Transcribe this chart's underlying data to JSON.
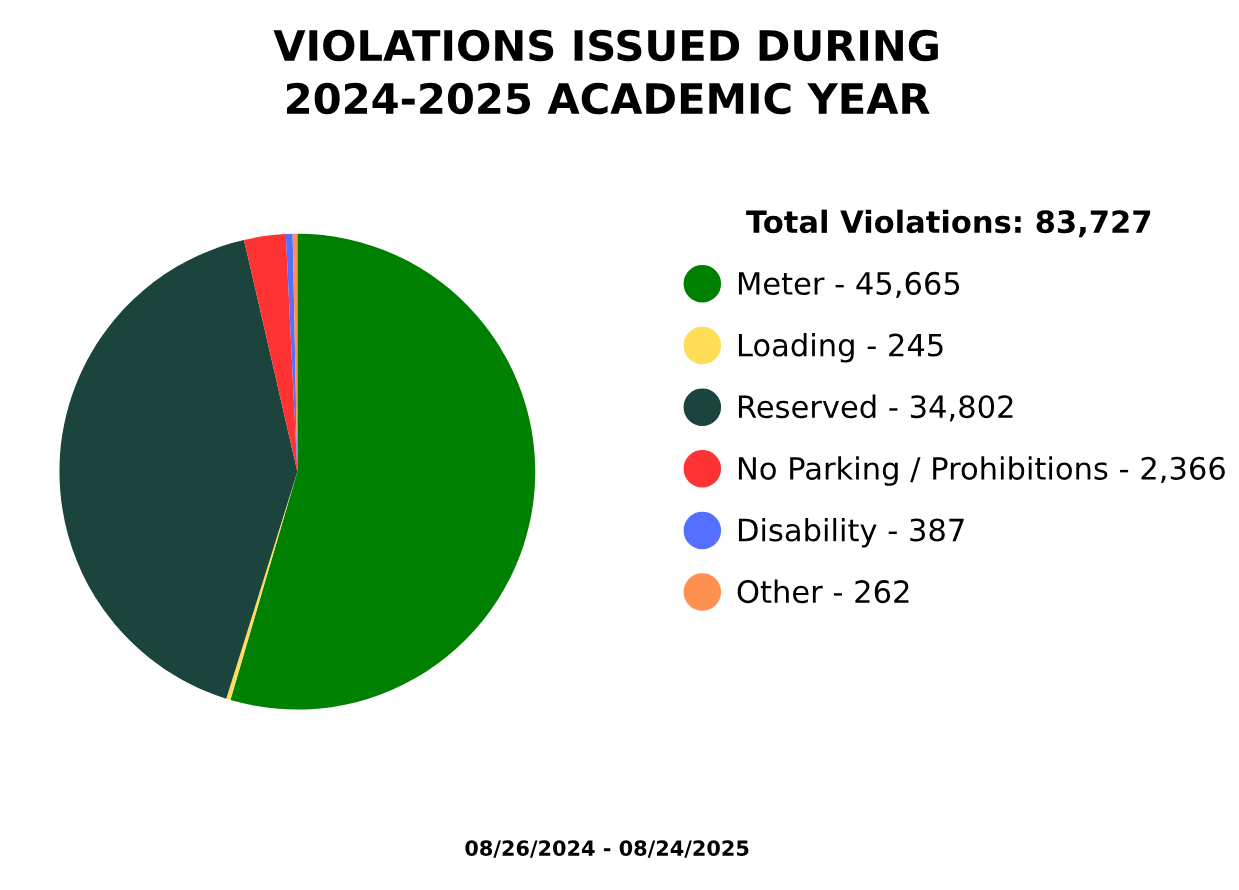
{
  "chart_data": {
    "type": "pie",
    "title": "VIOLATIONS ISSUED DURING\n2024-2025 ACADEMIC YEAR",
    "legend_title": "Total Violations: 83,727",
    "categories": [
      "Meter",
      "Loading",
      "Reserved",
      "No Parking / Prohibitions",
      "Disability",
      "Other"
    ],
    "values": [
      45665,
      245,
      34802,
      2366,
      387,
      262
    ],
    "value_labels": [
      "45,665",
      "245",
      "34,802",
      "2,366",
      "387",
      "262"
    ],
    "colors": [
      "#008000",
      "#ffdd55",
      "#1b443c",
      "#ff3333",
      "#5570ff",
      "#ff9150"
    ],
    "legend": "right",
    "annotations": [
      "08/26/2024 - 08/24/2025"
    ]
  }
}
